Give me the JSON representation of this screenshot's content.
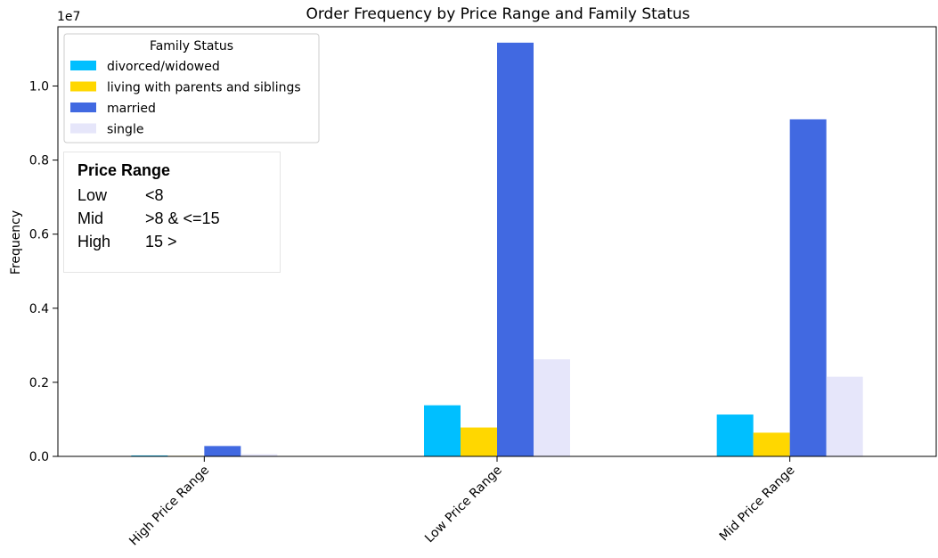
{
  "chart_data": {
    "type": "bar",
    "title": "Order Frequency by Price Range and Family Status",
    "xlabel": "",
    "ylabel": "Frequency",
    "scale_label": "1e7",
    "ylim": [
      0,
      11600000
    ],
    "yticks": [
      "0.0",
      "0.2",
      "0.4",
      "0.6",
      "0.8",
      "1.0"
    ],
    "ytick_values": [
      0,
      2000000,
      4000000,
      6000000,
      8000000,
      10000000
    ],
    "categories": [
      "High Price Range",
      "Low Price Range",
      "Mid Price Range"
    ],
    "legend_title": "Family Status",
    "legend_position": "upper left",
    "series": [
      {
        "name": "divorced/widowed",
        "color": "#00bfff",
        "values": [
          25000,
          1380000,
          1130000
        ]
      },
      {
        "name": "living with parents and siblings",
        "color": "#ffd700",
        "values": [
          14000,
          780000,
          640000
        ]
      },
      {
        "name": "married",
        "color": "#4169e1",
        "values": [
          280000,
          11170000,
          9100000
        ]
      },
      {
        "name": "single",
        "color": "#e6e6fa",
        "values": [
          60000,
          2620000,
          2150000
        ]
      }
    ],
    "grid": false
  },
  "annotation": {
    "title": "Price Range",
    "rows": [
      {
        "label": "Low",
        "value": "<8"
      },
      {
        "label": "Mid",
        "value": ">8 & <=15"
      },
      {
        "label": "High",
        "value": "15 >"
      }
    ]
  }
}
